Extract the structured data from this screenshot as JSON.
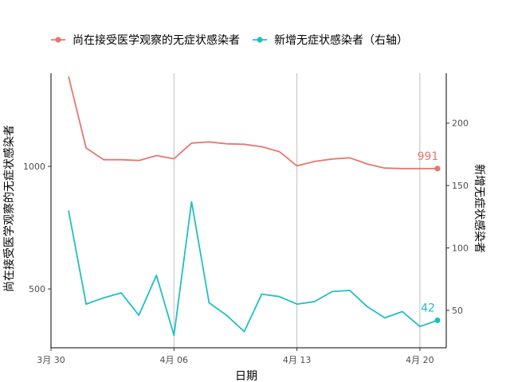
{
  "chart_data": {
    "type": "line",
    "xlabel": "日期",
    "ylabel": "尚在接受医学观察的无症状感染者",
    "y2label": "新增无症状感染者",
    "x_ticks": [
      "3月 30",
      "4月 06",
      "4月 13",
      "4月 20"
    ],
    "x_tick_days": [
      0,
      7,
      14,
      21
    ],
    "xlim": [
      0,
      22.5
    ],
    "ylim": [
      260,
      1380
    ],
    "y2lim": [
      20,
      240
    ],
    "y_ticks": [
      500,
      1000
    ],
    "y2_ticks": [
      50,
      100,
      150,
      200
    ],
    "grid": "vertical",
    "legend_position": "top",
    "x": [
      1,
      2,
      3,
      4,
      5,
      6,
      7,
      8,
      9,
      10,
      11,
      12,
      13,
      14,
      15,
      16,
      17,
      18,
      19,
      20,
      21,
      22
    ],
    "series": [
      {
        "name": "尚在接受医学观察的无症状感染者",
        "axis": "left",
        "color": "#E8766E",
        "values": [
          1367,
          1075,
          1027,
          1027,
          1024,
          1044,
          1031,
          1095,
          1100,
          1092,
          1090,
          1080,
          1060,
          1002,
          1020,
          1030,
          1035,
          1010,
          993,
          991,
          991,
          991
        ],
        "end_label": "991"
      },
      {
        "name": "新增无症状感染者（右轴）",
        "axis": "right",
        "color": "#1FBFC4",
        "values": [
          130,
          55,
          60,
          64,
          46,
          78,
          30,
          137,
          56,
          46,
          33,
          63,
          61,
          55,
          57,
          65,
          66,
          53,
          44,
          49,
          37,
          42
        ],
        "end_label": "42"
      }
    ]
  }
}
